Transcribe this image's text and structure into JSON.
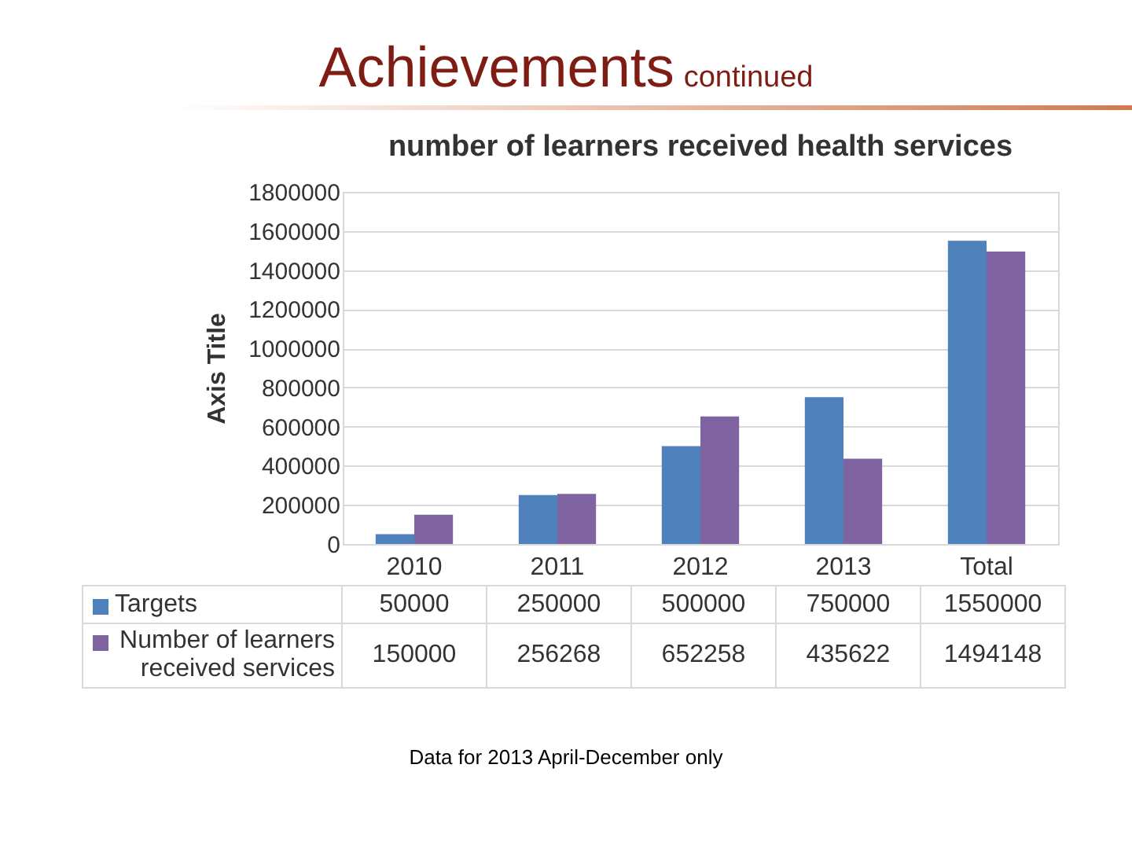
{
  "chart_data": {
    "type": "bar",
    "title": "number of learners received health services",
    "ylabel": "Axis Title",
    "categories": [
      "2010",
      "2011",
      "2012",
      "2013",
      "Total"
    ],
    "series": [
      {
        "name": "Targets",
        "color": "#4f81bd",
        "values": [
          50000,
          250000,
          500000,
          750000,
          1550000
        ]
      },
      {
        "name": "Number of learners received services",
        "color": "#8064a2",
        "values": [
          150000,
          256268,
          652258,
          435622,
          1494148
        ]
      }
    ],
    "ylim": [
      0,
      1800000
    ],
    "yticks": [
      0,
      200000,
      400000,
      600000,
      800000,
      1000000,
      1200000,
      1400000,
      1600000,
      1800000
    ],
    "grid": "y",
    "legend": "bottom",
    "data_labels": true,
    "annotations": [
      "Achievements",
      "continued",
      "Data for 2013 April-December only"
    ]
  }
}
